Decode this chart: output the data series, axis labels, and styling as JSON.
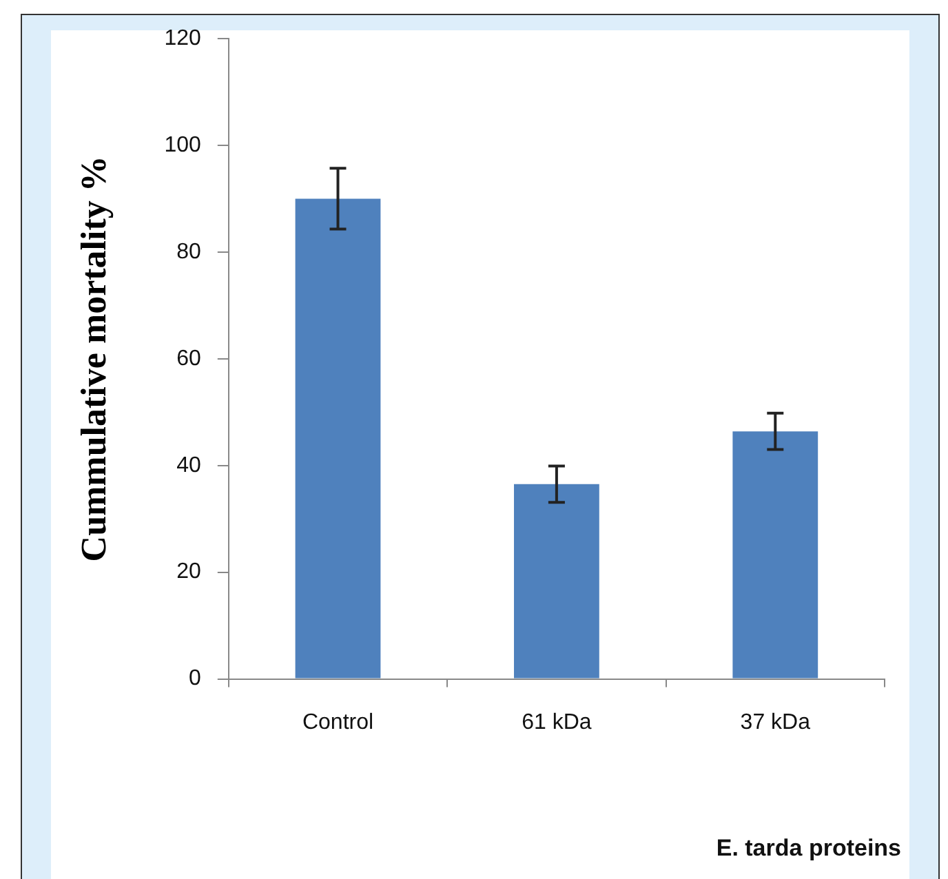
{
  "chart_data": {
    "type": "bar",
    "categories": [
      "Control",
      "61 kDa",
      "37 kDa"
    ],
    "values": [
      90,
      36.5,
      46.4
    ],
    "errors": [
      5.7,
      3.4,
      3.4
    ],
    "color": "#4f81bd",
    "ylabel": "Cummulative mortality %",
    "xlabel": "E. tarda proteins",
    "ylim": [
      0,
      120
    ],
    "yticks": [
      0,
      20,
      40,
      60,
      80,
      100,
      120
    ],
    "grid": false,
    "legend": false
  }
}
